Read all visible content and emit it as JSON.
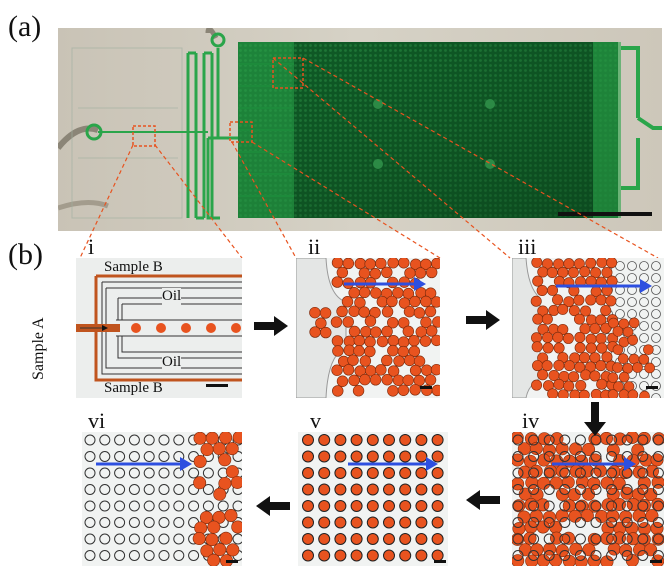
{
  "figure": {
    "panel_a_label": "(a)",
    "panel_b_label": "(b)"
  },
  "subpanels": {
    "i": {
      "label": "i",
      "sample_a": "Sample A",
      "sample_b_top": "Sample B",
      "sample_b_bottom": "Sample B",
      "oil_top": "Oil",
      "oil_bottom": "Oil"
    },
    "ii": {
      "label": "ii"
    },
    "iii": {
      "label": "iii"
    },
    "iv": {
      "label": "iv"
    },
    "v": {
      "label": "v"
    },
    "vi": {
      "label": "vi"
    }
  },
  "colors": {
    "droplet": "#e8531f",
    "flow_arrow": "#2d4fe0",
    "channel": "#2aa54a",
    "dashed": "#e8531f"
  },
  "icons": [
    "right-arrow-icon",
    "down-arrow-icon",
    "left-arrow-icon",
    "flow-arrow-icon",
    "scale-bar-icon"
  ]
}
